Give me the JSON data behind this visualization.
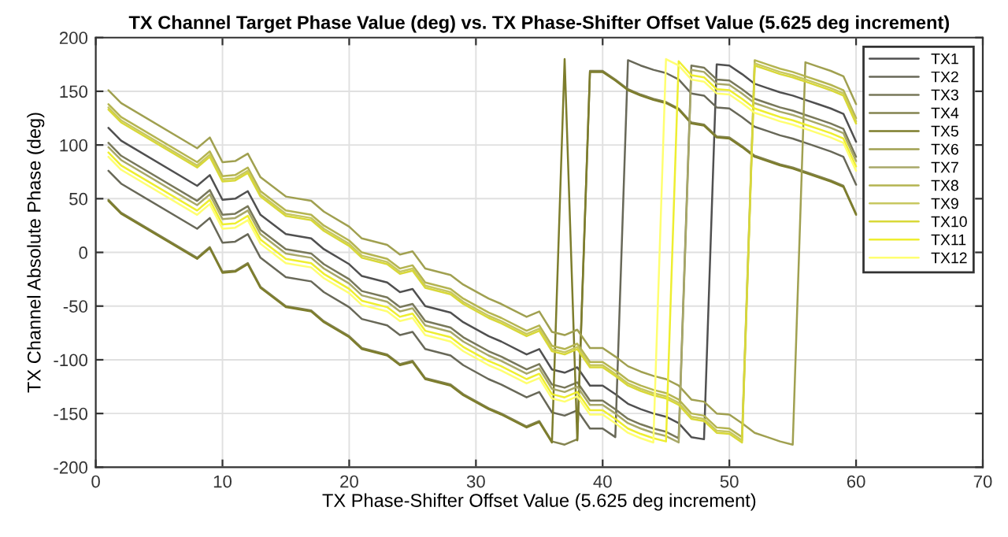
{
  "chart_data": {
    "type": "line",
    "title": "TX Channel Target Phase Value (deg) vs. TX Phase-Shifter Offset Value (5.625 deg increment)",
    "xlabel": "TX Phase-Shifter Offset Value (5.625 deg increment)",
    "ylabel": "TX Channel Absolute Phase (deg)",
    "x": [
      1,
      2,
      8,
      9,
      10,
      11,
      12,
      13,
      15,
      17,
      18,
      20,
      21,
      23,
      24,
      25,
      26,
      28,
      29,
      31,
      32,
      34,
      35,
      36,
      37,
      38,
      39,
      40,
      41,
      42,
      43,
      44,
      45,
      46,
      47,
      48,
      49,
      50,
      51,
      52,
      53,
      54,
      55,
      56,
      57,
      58,
      59,
      60
    ],
    "series": [
      {
        "name": "TX1",
        "color": "#505050",
        "values": [
          116,
          104,
          62,
          72,
          49,
          50,
          57,
          35,
          17,
          13,
          3,
          -11,
          -22,
          -28,
          -37,
          -34,
          -50,
          -56,
          -65,
          -78,
          -83,
          -95,
          -90,
          -109,
          -112,
          -107,
          -124,
          -124,
          -132,
          -141,
          -146,
          -150,
          -153,
          -159,
          -172,
          -174,
          175,
          174,
          166,
          157,
          153,
          149,
          146,
          142,
          138,
          134,
          129,
          103
        ]
      },
      {
        "name": "TX2",
        "color": "#686858",
        "values": [
          76,
          64,
          22,
          32,
          9,
          10,
          17,
          -5,
          -23,
          -27,
          -37,
          -51,
          -62,
          -68,
          -77,
          -74,
          -90,
          -96,
          -105,
          -118,
          -123,
          -135,
          -130,
          -149,
          -152,
          -147,
          -164,
          -164,
          -172,
          179,
          174,
          170,
          167,
          161,
          148,
          146,
          135,
          134,
          126,
          117,
          113,
          109,
          106,
          102,
          98,
          94,
          89,
          63
        ]
      },
      {
        "name": "TX3",
        "color": "#78785a",
        "values": [
          102,
          90,
          48,
          58,
          35,
          36,
          43,
          21,
          3,
          -1,
          -11,
          -25,
          -36,
          -42,
          -51,
          -48,
          -64,
          -70,
          -79,
          -92,
          -97,
          -109,
          -104,
          -123,
          -126,
          -121,
          -138,
          -138,
          -146,
          -155,
          -160,
          -164,
          -167,
          -173,
          174,
          172,
          161,
          160,
          152,
          143,
          139,
          135,
          132,
          128,
          124,
          120,
          115,
          89
        ]
      },
      {
        "name": "TX4",
        "color": "#848450",
        "values": [
          49,
          37,
          -5,
          5,
          -18,
          -17,
          -10,
          -32,
          -50,
          -54,
          -64,
          -78,
          -89,
          -95,
          -104,
          -101,
          -117,
          -123,
          -132,
          -145,
          -150,
          -162,
          -157,
          -176,
          -179,
          -174,
          169,
          169,
          161,
          152,
          147,
          143,
          140,
          134,
          121,
          119,
          108,
          107,
          99,
          90,
          86,
          82,
          79,
          75,
          71,
          67,
          62,
          36
        ]
      },
      {
        "name": "TX5",
        "color": "#7d7d2c",
        "values": [
          48,
          36,
          -6,
          4,
          -19,
          -18,
          -11,
          -33,
          -51,
          -55,
          -65,
          -79,
          -90,
          -96,
          -105,
          -102,
          -118,
          -124,
          -133,
          -146,
          -151,
          -163,
          -158,
          -177,
          180,
          -175,
          168,
          168,
          160,
          151,
          146,
          142,
          139,
          133,
          120,
          118,
          107,
          106,
          98,
          89,
          85,
          81,
          78,
          74,
          70,
          66,
          61,
          35
        ]
      },
      {
        "name": "TX6",
        "color": "#a0a050",
        "values": [
          151,
          139,
          97,
          107,
          84,
          85,
          92,
          70,
          52,
          48,
          38,
          24,
          13,
          7,
          -2,
          1,
          -15,
          -21,
          -30,
          -43,
          -48,
          -60,
          -55,
          -74,
          -77,
          -72,
          -89,
          -89,
          -97,
          -106,
          -111,
          -115,
          -118,
          -124,
          -137,
          -139,
          -150,
          -151,
          -159,
          -168,
          -172,
          -176,
          -179,
          177,
          173,
          169,
          164,
          138
        ]
      },
      {
        "name": "TX7",
        "color": "#a8a868",
        "values": [
          98,
          86,
          44,
          54,
          31,
          32,
          39,
          17,
          -1,
          -5,
          -15,
          -29,
          -40,
          -46,
          -55,
          -52,
          -68,
          -74,
          -83,
          -96,
          -101,
          -113,
          -108,
          -127,
          -130,
          -125,
          -142,
          -142,
          -150,
          -159,
          -164,
          -168,
          -171,
          -177,
          170,
          168,
          157,
          156,
          148,
          139,
          135,
          131,
          128,
          124,
          120,
          116,
          111,
          85
        ]
      },
      {
        "name": "TX8",
        "color": "#b4b450",
        "values": [
          138,
          126,
          84,
          94,
          71,
          72,
          79,
          57,
          39,
          35,
          25,
          11,
          0,
          -6,
          -15,
          -12,
          -28,
          -34,
          -43,
          -56,
          -61,
          -73,
          -68,
          -87,
          -90,
          -85,
          -102,
          -102,
          -110,
          -119,
          -124,
          -128,
          -131,
          -137,
          -150,
          -152,
          -163,
          -164,
          -172,
          179,
          175,
          171,
          168,
          164,
          160,
          156,
          151,
          125
        ]
      },
      {
        "name": "TX9",
        "color": "#c8c860",
        "values": [
          135,
          123,
          81,
          91,
          68,
          69,
          76,
          54,
          36,
          32,
          22,
          8,
          -3,
          -9,
          -18,
          -15,
          -31,
          -37,
          -46,
          -59,
          -64,
          -76,
          -71,
          -90,
          -93,
          -88,
          -105,
          -105,
          -113,
          -122,
          -127,
          -131,
          -134,
          -140,
          -153,
          -155,
          -166,
          -167,
          -175,
          176,
          172,
          168,
          165,
          161,
          157,
          153,
          148,
          122
        ]
      },
      {
        "name": "TX10",
        "color": "#d8d838",
        "values": [
          133,
          121,
          79,
          89,
          66,
          67,
          74,
          52,
          34,
          30,
          20,
          6,
          -5,
          -11,
          -20,
          -17,
          -33,
          -39,
          -48,
          -61,
          -66,
          -78,
          -73,
          -92,
          -95,
          -90,
          -107,
          -107,
          -115,
          -124,
          -129,
          -133,
          -136,
          -142,
          -155,
          -157,
          -168,
          -169,
          -177,
          174,
          170,
          166,
          163,
          159,
          155,
          151,
          146,
          120
        ]
      },
      {
        "name": "TX11",
        "color": "#eeee30",
        "values": [
          93,
          81,
          39,
          49,
          26,
          27,
          34,
          12,
          -6,
          -10,
          -20,
          -34,
          -45,
          -51,
          -60,
          -57,
          -73,
          -79,
          -88,
          -101,
          -106,
          -118,
          -113,
          -132,
          -135,
          -130,
          -147,
          -147,
          -155,
          -164,
          -169,
          -173,
          -176,
          178,
          165,
          163,
          152,
          151,
          143,
          134,
          130,
          126,
          123,
          119,
          115,
          111,
          106,
          80
        ]
      },
      {
        "name": "TX12",
        "color": "#ffff70",
        "values": [
          89,
          77,
          35,
          45,
          22,
          23,
          30,
          8,
          -10,
          -14,
          -24,
          -38,
          -49,
          -55,
          -64,
          -61,
          -77,
          -83,
          -92,
          -105,
          -110,
          -122,
          -117,
          -136,
          -139,
          -134,
          -151,
          -151,
          -159,
          -168,
          -173,
          -177,
          180,
          174,
          161,
          159,
          148,
          147,
          139,
          130,
          126,
          122,
          119,
          115,
          111,
          107,
          102,
          76
        ]
      }
    ],
    "xlim": [
      0,
      70
    ],
    "xticks": [
      0,
      10,
      20,
      30,
      40,
      50,
      60,
      70
    ],
    "ylim": [
      -200,
      200
    ],
    "yticks": [
      -200,
      -150,
      -100,
      -50,
      0,
      50,
      100,
      150,
      200
    ],
    "grid": true,
    "legend": "top right"
  }
}
